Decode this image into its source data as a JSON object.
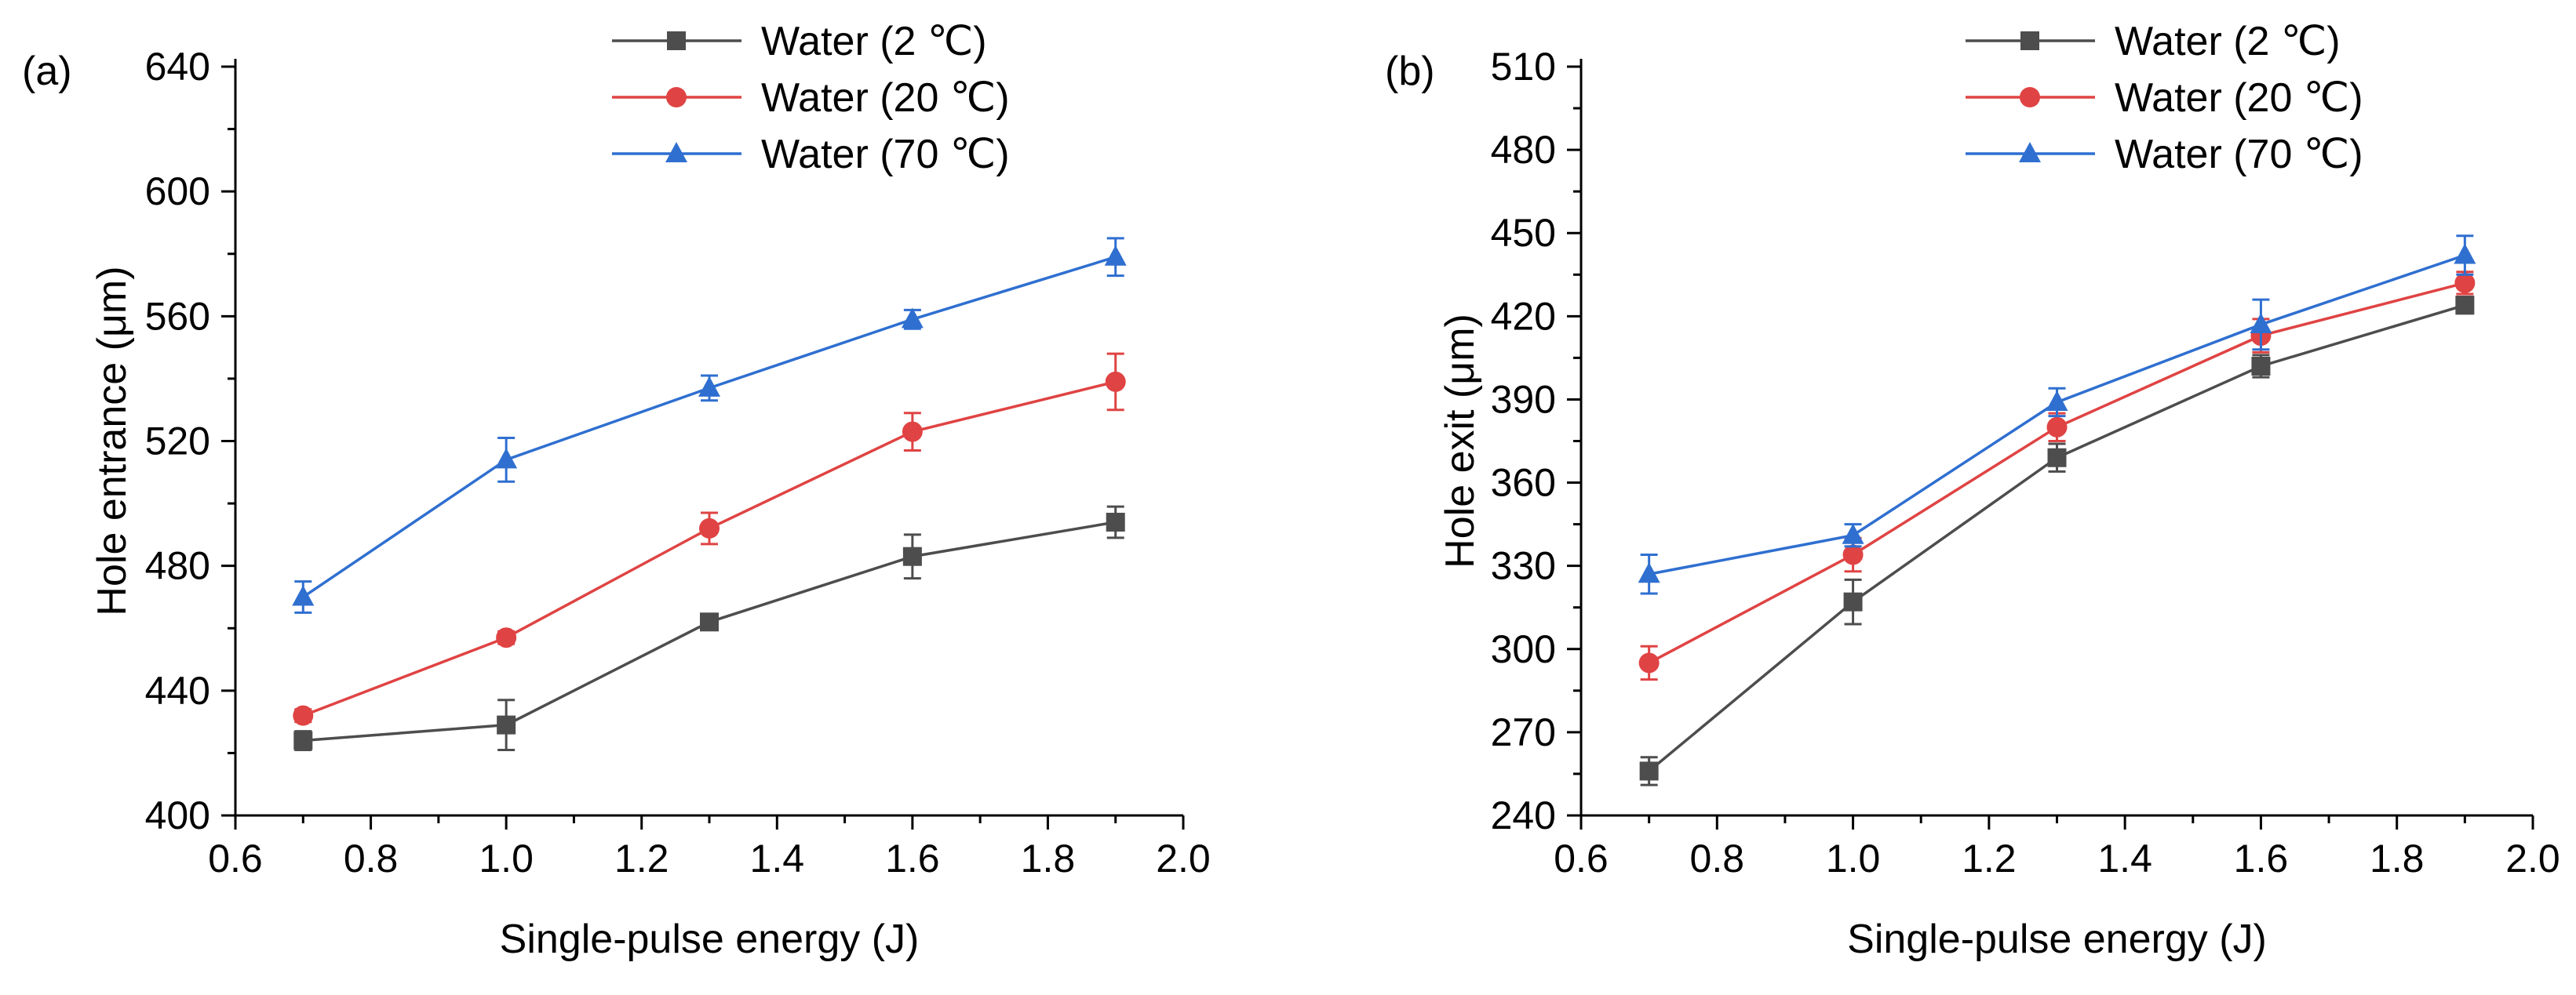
{
  "chart_data": [
    {
      "type": "line",
      "panel_label": "(a)",
      "xlabel": "Single-pulse energy (J)",
      "ylabel": "Hole entrance (μm)",
      "xlim": [
        0.6,
        2.0
      ],
      "ylim": [
        400,
        640
      ],
      "x_ticks": [
        "0.6",
        "0.8",
        "1.0",
        "1.2",
        "1.4",
        "1.6",
        "1.8",
        "2.0"
      ],
      "y_ticks": [
        "400",
        "440",
        "480",
        "520",
        "560",
        "600",
        "640"
      ],
      "x": [
        0.7,
        1.0,
        1.3,
        1.6,
        1.9
      ],
      "legend_position": "top-right",
      "series": [
        {
          "name": "Water (2 ℃)",
          "marker": "square",
          "color": "#4d4d4d",
          "values": [
            424,
            429,
            462,
            483,
            494
          ],
          "errors": [
            3,
            8,
            2,
            7,
            5
          ]
        },
        {
          "name": "Water (20 ℃)",
          "marker": "circle",
          "color": "#e04343",
          "values": [
            432,
            457,
            492,
            523,
            539
          ],
          "errors": [
            2,
            2,
            5,
            6,
            9
          ]
        },
        {
          "name": "Water (70 ℃)",
          "marker": "triangle",
          "color": "#2f6fd0",
          "values": [
            470,
            514,
            537,
            559,
            579
          ],
          "errors": [
            5,
            7,
            4,
            3,
            6
          ]
        }
      ]
    },
    {
      "type": "line",
      "panel_label": "(b)",
      "xlabel": "Single-pulse energy (J)",
      "ylabel": "Hole exit (μm)",
      "xlim": [
        0.6,
        2.0
      ],
      "ylim": [
        240,
        510
      ],
      "x_ticks": [
        "0.6",
        "0.8",
        "1.0",
        "1.2",
        "1.4",
        "1.6",
        "1.8",
        "2.0"
      ],
      "y_ticks": [
        "240",
        "270",
        "300",
        "330",
        "360",
        "390",
        "420",
        "450",
        "480",
        "510"
      ],
      "x": [
        0.7,
        1.0,
        1.3,
        1.6,
        1.9
      ],
      "legend_position": "top-right",
      "series": [
        {
          "name": "Water (2 ℃)",
          "marker": "square",
          "color": "#4d4d4d",
          "values": [
            256,
            317,
            369,
            402,
            424
          ],
          "errors": [
            5,
            8,
            5,
            4,
            3
          ]
        },
        {
          "name": "Water (20 ℃)",
          "marker": "circle",
          "color": "#e04343",
          "values": [
            295,
            334,
            380,
            413,
            432
          ],
          "errors": [
            6,
            6,
            5,
            6,
            4
          ]
        },
        {
          "name": "Water (70 ℃)",
          "marker": "triangle",
          "color": "#2f6fd0",
          "values": [
            327,
            341,
            389,
            417,
            442
          ],
          "errors": [
            7,
            4,
            5,
            9,
            7
          ]
        }
      ]
    }
  ]
}
